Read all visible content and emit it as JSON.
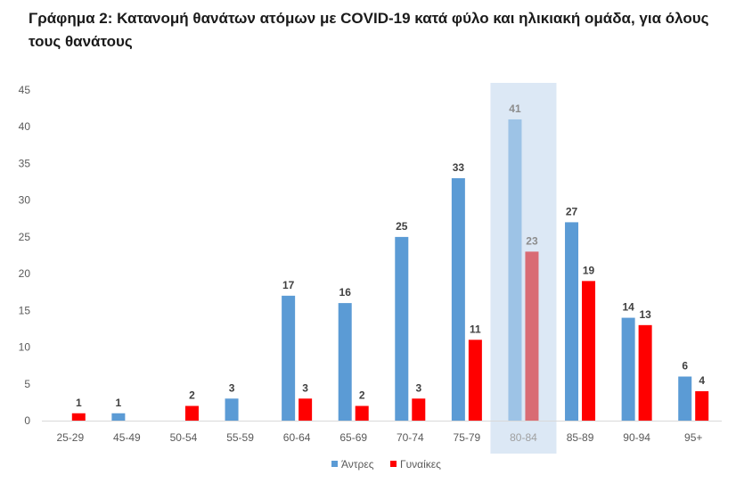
{
  "title": "Γράφημα 2: Κατανομή θανάτων ατόμων με COVID-19 κατά φύλο και ηλικιακή ομάδα, για όλους τους θανάτους",
  "chart_data": {
    "type": "bar",
    "title": "Γράφημα 2: Κατανομή θανάτων ατόμων με COVID-19 κατά φύλο και ηλικιακή ομάδα, για όλους τους θανάτους",
    "xlabel": "",
    "ylabel": "",
    "ylim": [
      0,
      45
    ],
    "yticks": [
      0,
      5,
      10,
      15,
      20,
      25,
      30,
      35,
      40,
      45
    ],
    "grid": false,
    "legend": "bottom",
    "highlighted_category": "80-84",
    "categories": [
      "25-29",
      "45-49",
      "50-54",
      "55-59",
      "60-64",
      "65-69",
      "70-74",
      "75-79",
      "80-84",
      "85-89",
      "90-94",
      "95+"
    ],
    "series": [
      {
        "name": "Άντρες",
        "color": "#5b9bd5",
        "values": [
          null,
          1,
          null,
          3,
          17,
          16,
          25,
          33,
          41,
          27,
          14,
          6
        ]
      },
      {
        "name": "Γυναίκες",
        "color": "#ff0000",
        "values": [
          1,
          null,
          2,
          null,
          3,
          2,
          3,
          11,
          23,
          19,
          13,
          4
        ]
      }
    ]
  }
}
